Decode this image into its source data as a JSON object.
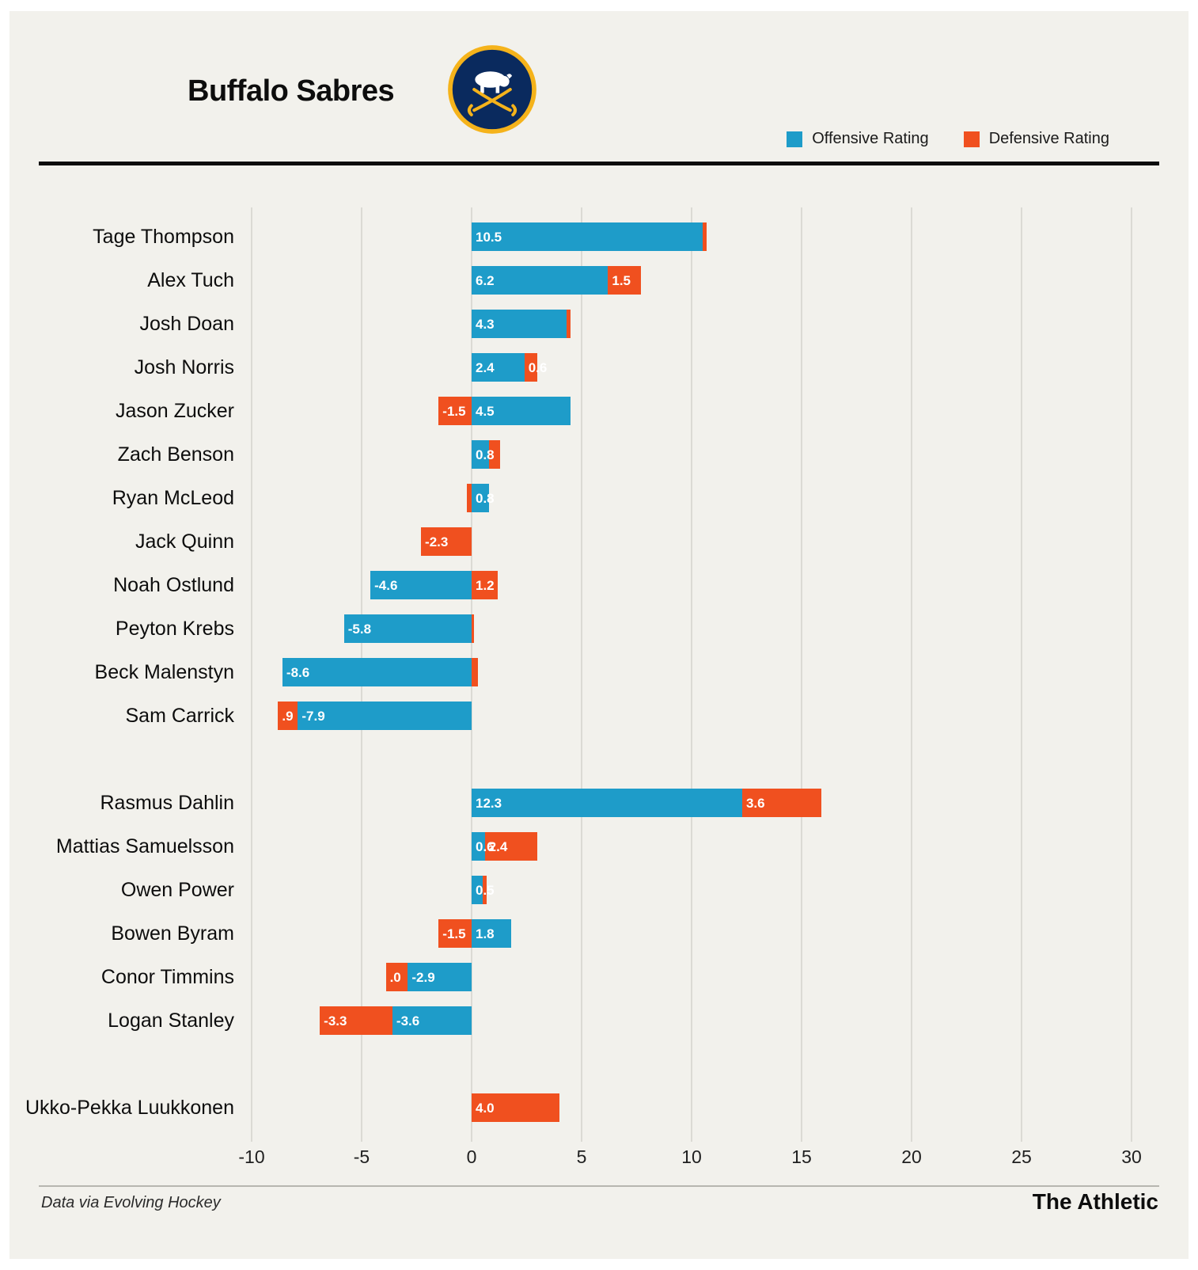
{
  "header": {
    "title": "Buffalo Sabres",
    "logo": {
      "icon": "buffalo-sabres-logo",
      "ring_color": "#F5B31B",
      "bg_color": "#0A2A5E",
      "figure_color": "#FFFFFF"
    },
    "legend": [
      {
        "label": "Offensive Rating",
        "color": "#1E9CC9"
      },
      {
        "label": "Defensive Rating",
        "color": "#F0501F"
      }
    ]
  },
  "chart_data": {
    "type": "bar",
    "orientation": "horizontal",
    "stacked": true,
    "xlim": [
      -10,
      30
    ],
    "x_ticks": [
      "-10",
      "-5",
      "0",
      "5",
      "10",
      "15",
      "20",
      "25",
      "30"
    ],
    "series": [
      "Offensive Rating",
      "Defensive Rating"
    ],
    "groups": [
      {
        "players": [
          {
            "name": "Tage Thompson",
            "off": 10.5,
            "def": 0.2,
            "off_label": "10.5",
            "def_label": ""
          },
          {
            "name": "Alex Tuch",
            "off": 6.2,
            "def": 1.5,
            "off_label": "6.2",
            "def_label": "1.5"
          },
          {
            "name": "Josh Doan",
            "off": 4.3,
            "def": 0.2,
            "off_label": "4.3",
            "def_label": ""
          },
          {
            "name": "Josh Norris",
            "off": 2.4,
            "def": 0.6,
            "off_label": "2.4",
            "def_label": "0.6"
          },
          {
            "name": "Jason Zucker",
            "off": 4.5,
            "def": -1.5,
            "off_label": "4.5",
            "def_label": "-1.5"
          },
          {
            "name": "Zach Benson",
            "off": 0.8,
            "def": 0.5,
            "off_label": "0.8",
            "def_label": ""
          },
          {
            "name": "Ryan McLeod",
            "off": 0.8,
            "def": -0.2,
            "off_label": "0.8",
            "def_label": ""
          },
          {
            "name": "Jack Quinn",
            "off": 0,
            "def": -2.3,
            "off_label": "",
            "def_label": "-2.3"
          },
          {
            "name": "Noah Ostlund",
            "off": -4.6,
            "def": 1.2,
            "off_label": "-4.6",
            "def_label": "1.2"
          },
          {
            "name": "Peyton Krebs",
            "off": -5.8,
            "def": 0.1,
            "off_label": "-5.8",
            "def_label": ""
          },
          {
            "name": "Beck Malenstyn",
            "off": -8.6,
            "def": 0.3,
            "off_label": "-8.6",
            "def_label": ""
          },
          {
            "name": "Sam Carrick",
            "off": -7.9,
            "def": -0.9,
            "off_label": "-7.9",
            "def_label": ".9"
          }
        ]
      },
      {
        "players": [
          {
            "name": "Rasmus Dahlin",
            "off": 12.3,
            "def": 3.6,
            "off_label": "12.3",
            "def_label": "3.6"
          },
          {
            "name": "Mattias Samuelsson",
            "off": 0.6,
            "def": 2.4,
            "off_label": "0.6",
            "def_label": "2.4"
          },
          {
            "name": "Owen Power",
            "off": 0.5,
            "def": 0.2,
            "off_label": "0.5",
            "def_label": ""
          },
          {
            "name": "Bowen Byram",
            "off": 1.8,
            "def": -1.5,
            "off_label": "1.8",
            "def_label": "-1.5"
          },
          {
            "name": "Conor Timmins",
            "off": -2.9,
            "def": -1.0,
            "off_label": "-2.9",
            "def_label": ".0"
          },
          {
            "name": "Logan Stanley",
            "off": -3.6,
            "def": -3.3,
            "off_label": "-3.6",
            "def_label": "-3.3"
          }
        ]
      },
      {
        "players": [
          {
            "name": "Ukko-Pekka Luukkonen",
            "off": null,
            "def": 4.0,
            "off_label": "",
            "def_label": "4.0"
          }
        ]
      }
    ]
  },
  "footer": {
    "source": "Data via Evolving Hockey",
    "brand": "The Athletic"
  }
}
